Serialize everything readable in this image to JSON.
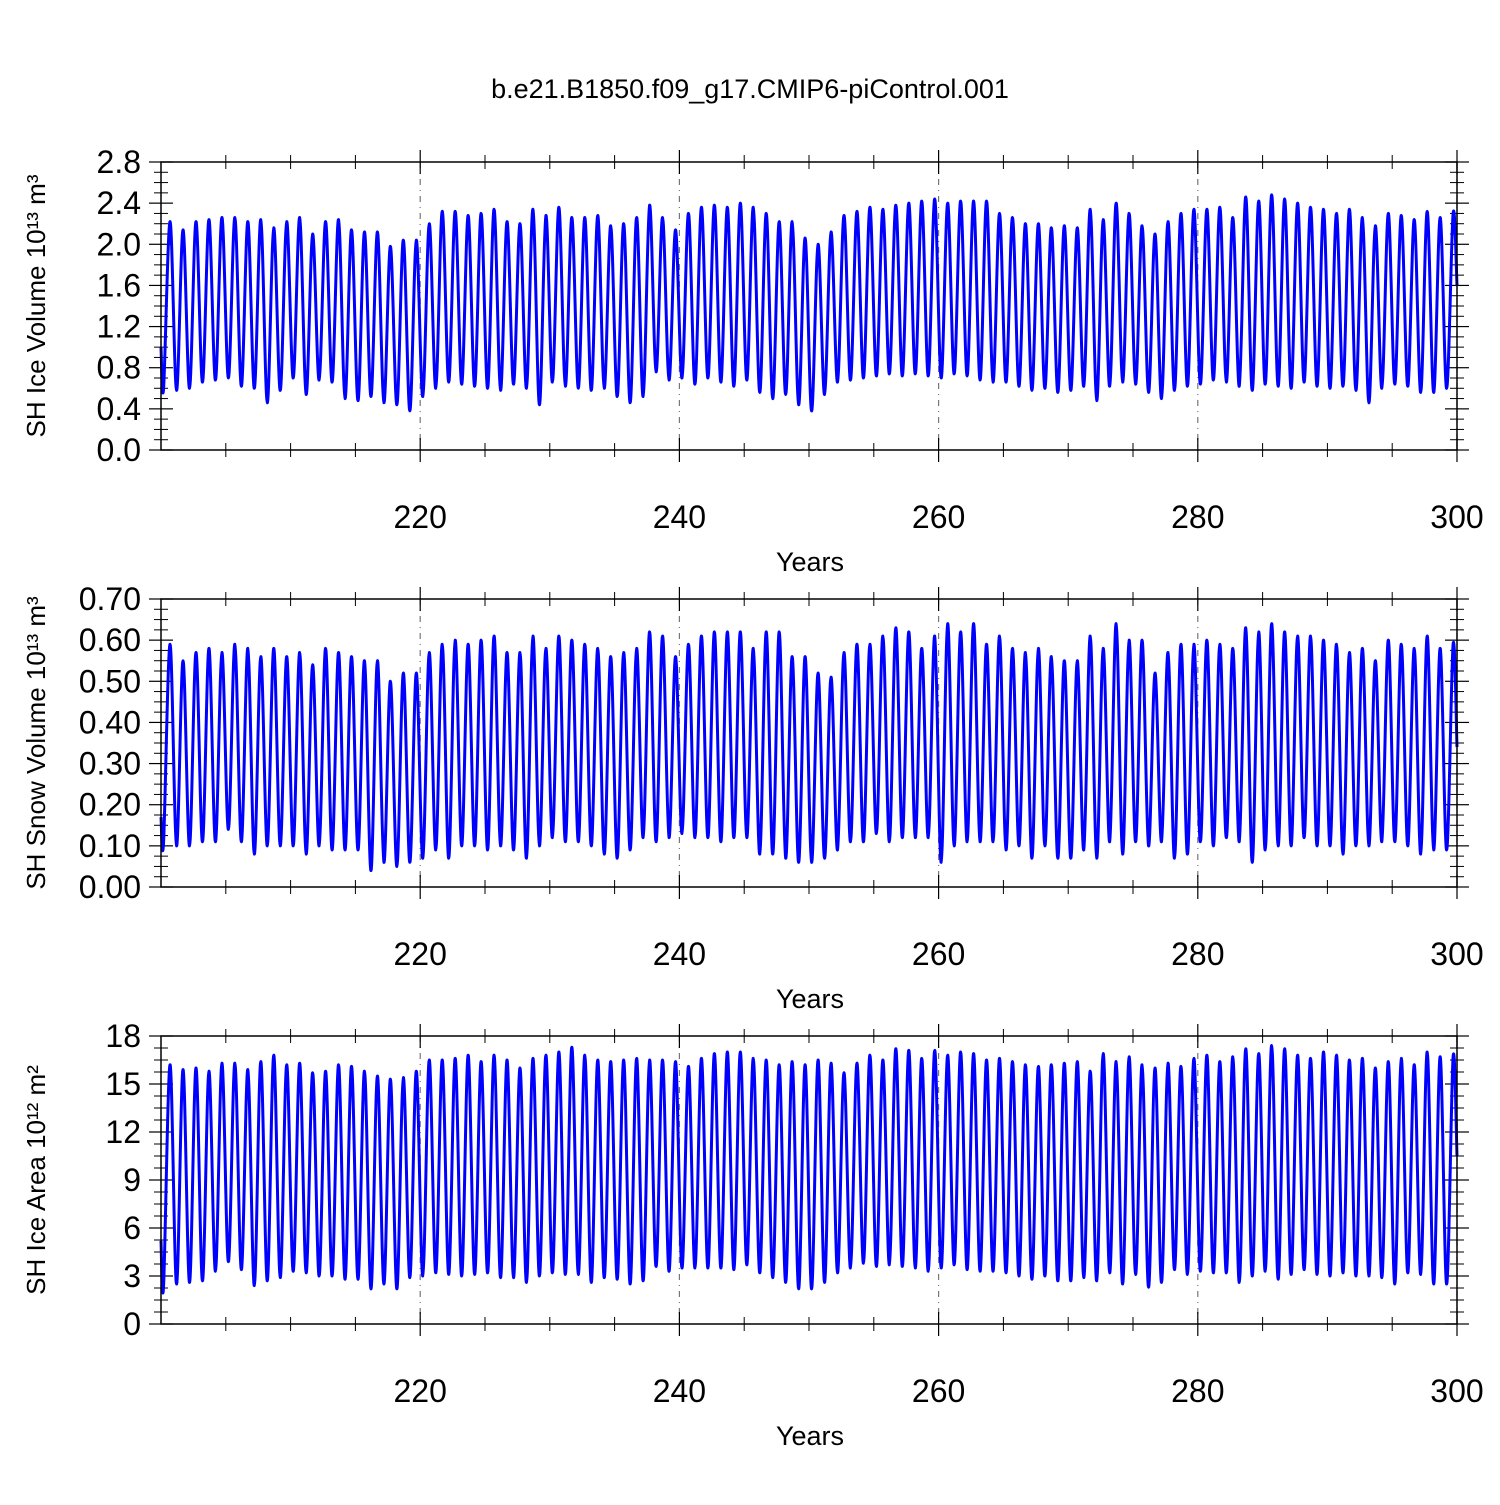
{
  "title": "b.e21.B1850.f09_g17.CMIP6-piControl.001",
  "chart_data": [
    {
      "type": "line",
      "ylabel": "SH Ice Volume 10¹³ m³",
      "xlabel": "Years",
      "color": "#0000ff",
      "xlim": [
        200,
        300
      ],
      "xticks": [
        220,
        240,
        260,
        280,
        300
      ],
      "xgrid": true,
      "ylim": [
        0,
        2.8
      ],
      "yticks": [
        {
          "value": 0,
          "label": "0.0"
        },
        0.4,
        0.8,
        1.2,
        1.6,
        {
          "value": 2,
          "label": "2.0"
        },
        2.4,
        2.8
      ],
      "x": [
        200,
        200.2,
        200.7,
        201.2,
        201.7,
        202.2,
        202.7,
        203.2,
        203.7,
        204.2,
        204.7,
        205.2,
        205.7,
        206.2,
        206.7,
        207.2,
        207.7,
        208.2,
        208.7,
        209.2,
        209.7,
        210.2,
        210.7,
        211.2,
        211.7,
        212.2,
        212.7,
        213.2,
        213.7,
        214.2,
        214.7,
        215.2,
        215.7,
        216.2,
        216.7,
        217.2,
        217.7,
        218.2,
        218.7,
        219.2,
        219.7,
        220.2,
        220.7,
        221.2,
        221.7,
        222.2,
        222.7,
        223.2,
        223.7,
        224.2,
        224.7,
        225.2,
        225.7,
        226.2,
        226.7,
        227.2,
        227.7,
        228.2,
        228.7,
        229.2,
        229.7,
        230.2,
        230.7,
        231.2,
        231.7,
        232.2,
        232.7,
        233.2,
        233.7,
        234.2,
        234.7,
        235.2,
        235.7,
        236.2,
        236.7,
        237.2,
        237.7,
        238.2,
        238.7,
        239.2,
        239.7,
        240.2,
        240.7,
        241.2,
        241.7,
        242.2,
        242.7,
        243.2,
        243.7,
        244.2,
        244.7,
        245.2,
        245.7,
        246.2,
        246.7,
        247.2,
        247.7,
        248.2,
        248.7,
        249.2,
        249.7,
        250.2,
        250.7,
        251.2,
        251.7,
        252.2,
        252.7,
        253.2,
        253.7,
        254.2,
        254.7,
        255.2,
        255.7,
        256.2,
        256.7,
        257.2,
        257.7,
        258.2,
        258.7,
        259.2,
        259.7,
        260.2,
        260.7,
        261.2,
        261.7,
        262.2,
        262.7,
        263.2,
        263.7,
        264.2,
        264.7,
        265.2,
        265.7,
        266.2,
        266.7,
        267.2,
        267.7,
        268.2,
        268.7,
        269.2,
        269.7,
        270.2,
        270.7,
        271.2,
        271.7,
        272.2,
        272.7,
        273.2,
        273.7,
        274.2,
        274.7,
        275.2,
        275.7,
        276.2,
        276.7,
        277.2,
        277.7,
        278.2,
        278.7,
        279.2,
        279.7,
        280.2,
        280.7,
        281.2,
        281.7,
        282.2,
        282.7,
        283.2,
        283.7,
        284.2,
        284.7,
        285.2,
        285.7,
        286.2,
        286.7,
        287.2,
        287.7,
        288.2,
        288.7,
        289.2,
        289.7,
        290.2,
        290.7,
        291.2,
        291.7,
        292.2,
        292.7,
        293.2,
        293.7,
        294.2,
        294.7,
        295.2,
        295.7,
        296.2,
        296.7,
        297.2,
        297.7,
        298.2,
        298.7,
        299.2,
        299.7,
        300
      ],
      "values": [
        1.0,
        0.6,
        2.22,
        0.58,
        2.14,
        0.6,
        2.22,
        0.66,
        2.24,
        0.68,
        2.26,
        0.7,
        2.26,
        0.62,
        2.22,
        0.6,
        2.24,
        0.46,
        2.16,
        0.58,
        2.22,
        0.7,
        2.26,
        0.54,
        2.1,
        0.68,
        2.22,
        0.66,
        2.24,
        0.5,
        2.14,
        0.48,
        2.12,
        0.52,
        2.12,
        0.46,
        1.98,
        0.44,
        2.04,
        0.38,
        2.04,
        0.52,
        2.2,
        0.6,
        2.32,
        0.66,
        2.32,
        0.64,
        2.28,
        0.62,
        2.3,
        0.6,
        2.34,
        0.58,
        2.22,
        0.64,
        2.2,
        0.6,
        2.34,
        0.44,
        2.28,
        0.66,
        2.36,
        0.62,
        2.26,
        0.6,
        2.26,
        0.58,
        2.28,
        0.6,
        2.18,
        0.52,
        2.2,
        0.46,
        2.26,
        0.52,
        2.38,
        0.76,
        2.26,
        0.68,
        2.14,
        0.7,
        2.3,
        0.64,
        2.36,
        0.7,
        2.38,
        0.66,
        2.36,
        0.62,
        2.4,
        0.68,
        2.36,
        0.56,
        2.3,
        0.5,
        2.22,
        0.54,
        2.22,
        0.44,
        2.06,
        0.38,
        2.0,
        0.54,
        2.12,
        0.66,
        2.28,
        0.68,
        2.32,
        0.7,
        2.36,
        0.72,
        2.34,
        0.74,
        2.38,
        0.72,
        2.4,
        0.74,
        2.42,
        0.72,
        2.44,
        0.7,
        2.4,
        0.74,
        2.42,
        0.72,
        2.42,
        0.68,
        2.42,
        0.66,
        2.3,
        0.66,
        2.26,
        0.62,
        2.2,
        0.58,
        2.2,
        0.6,
        2.16,
        0.56,
        2.18,
        0.58,
        2.16,
        0.62,
        2.34,
        0.48,
        2.24,
        0.62,
        2.4,
        0.66,
        2.3,
        0.64,
        2.18,
        0.56,
        2.1,
        0.5,
        2.22,
        0.58,
        2.3,
        0.62,
        2.34,
        0.64,
        2.34,
        0.68,
        2.36,
        0.66,
        2.26,
        0.62,
        2.46,
        0.58,
        2.42,
        0.64,
        2.48,
        0.62,
        2.44,
        0.6,
        2.4,
        0.66,
        2.36,
        0.62,
        2.34,
        0.6,
        2.3,
        0.62,
        2.34,
        0.58,
        2.26,
        0.46,
        2.18,
        0.6,
        2.3,
        0.64,
        2.28,
        0.62,
        2.24,
        0.56,
        2.32,
        0.56,
        2.26,
        0.6,
        2.3,
        1.6
      ]
    },
    {
      "type": "line",
      "ylabel": "SH Snow Volume 10¹³ m³",
      "xlabel": "Years",
      "color": "#0000ff",
      "xlim": [
        200,
        300
      ],
      "xticks": [
        220,
        240,
        260,
        280,
        300
      ],
      "xgrid": true,
      "ylim": [
        0,
        0.7
      ],
      "yticks": [
        {
          "value": 0,
          "label": "0.00"
        },
        {
          "value": 0.1,
          "label": "0.10"
        },
        {
          "value": 0.2,
          "label": "0.20"
        },
        {
          "value": 0.3,
          "label": "0.30"
        },
        {
          "value": 0.4,
          "label": "0.40"
        },
        {
          "value": 0.5,
          "label": "0.50"
        },
        {
          "value": 0.6,
          "label": "0.60"
        },
        {
          "value": 0.7,
          "label": "0.70"
        }
      ],
      "x": [
        200,
        200.2,
        200.7,
        201.2,
        201.7,
        202.2,
        202.7,
        203.2,
        203.7,
        204.2,
        204.7,
        205.2,
        205.7,
        206.2,
        206.7,
        207.2,
        207.7,
        208.2,
        208.7,
        209.2,
        209.7,
        210.2,
        210.7,
        211.2,
        211.7,
        212.2,
        212.7,
        213.2,
        213.7,
        214.2,
        214.7,
        215.2,
        215.7,
        216.2,
        216.7,
        217.2,
        217.7,
        218.2,
        218.7,
        219.2,
        219.7,
        220.2,
        220.7,
        221.2,
        221.7,
        222.2,
        222.7,
        223.2,
        223.7,
        224.2,
        224.7,
        225.2,
        225.7,
        226.2,
        226.7,
        227.2,
        227.7,
        228.2,
        228.7,
        229.2,
        229.7,
        230.2,
        230.7,
        231.2,
        231.7,
        232.2,
        232.7,
        233.2,
        233.7,
        234.2,
        234.7,
        235.2,
        235.7,
        236.2,
        236.7,
        237.2,
        237.7,
        238.2,
        238.7,
        239.2,
        239.7,
        240.2,
        240.7,
        241.2,
        241.7,
        242.2,
        242.7,
        243.2,
        243.7,
        244.2,
        244.7,
        245.2,
        245.7,
        246.2,
        246.7,
        247.2,
        247.7,
        248.2,
        248.7,
        249.2,
        249.7,
        250.2,
        250.7,
        251.2,
        251.7,
        252.2,
        252.7,
        253.2,
        253.7,
        254.2,
        254.7,
        255.2,
        255.7,
        256.2,
        256.7,
        257.2,
        257.7,
        258.2,
        258.7,
        259.2,
        259.7,
        260.2,
        260.7,
        261.2,
        261.7,
        262.2,
        262.7,
        263.2,
        263.7,
        264.2,
        264.7,
        265.2,
        265.7,
        266.2,
        266.7,
        267.2,
        267.7,
        268.2,
        268.7,
        269.2,
        269.7,
        270.2,
        270.7,
        271.2,
        271.7,
        272.2,
        272.7,
        273.2,
        273.7,
        274.2,
        274.7,
        275.2,
        275.7,
        276.2,
        276.7,
        277.2,
        277.7,
        278.2,
        278.7,
        279.2,
        279.7,
        280.2,
        280.7,
        281.2,
        281.7,
        282.2,
        282.7,
        283.2,
        283.7,
        284.2,
        284.7,
        285.2,
        285.7,
        286.2,
        286.7,
        287.2,
        287.7,
        288.2,
        288.7,
        289.2,
        289.7,
        290.2,
        290.7,
        291.2,
        291.7,
        292.2,
        292.7,
        293.2,
        293.7,
        294.2,
        294.7,
        295.2,
        295.7,
        296.2,
        296.7,
        297.2,
        297.7,
        298.2,
        298.7,
        299.2,
        299.7,
        300
      ],
      "values": [
        0.17,
        0.11,
        0.59,
        0.1,
        0.55,
        0.1,
        0.57,
        0.11,
        0.58,
        0.11,
        0.57,
        0.14,
        0.59,
        0.11,
        0.58,
        0.08,
        0.56,
        0.1,
        0.58,
        0.1,
        0.56,
        0.1,
        0.57,
        0.08,
        0.54,
        0.1,
        0.58,
        0.09,
        0.57,
        0.09,
        0.56,
        0.09,
        0.55,
        0.04,
        0.55,
        0.06,
        0.5,
        0.05,
        0.52,
        0.06,
        0.52,
        0.07,
        0.57,
        0.09,
        0.59,
        0.07,
        0.6,
        0.1,
        0.59,
        0.1,
        0.6,
        0.09,
        0.61,
        0.1,
        0.57,
        0.09,
        0.57,
        0.07,
        0.61,
        0.1,
        0.58,
        0.12,
        0.61,
        0.11,
        0.6,
        0.11,
        0.59,
        0.1,
        0.58,
        0.08,
        0.56,
        0.07,
        0.57,
        0.09,
        0.58,
        0.12,
        0.62,
        0.11,
        0.61,
        0.12,
        0.56,
        0.13,
        0.59,
        0.12,
        0.61,
        0.12,
        0.62,
        0.11,
        0.62,
        0.12,
        0.62,
        0.12,
        0.58,
        0.08,
        0.62,
        0.08,
        0.62,
        0.07,
        0.56,
        0.06,
        0.56,
        0.06,
        0.52,
        0.07,
        0.51,
        0.09,
        0.57,
        0.11,
        0.59,
        0.11,
        0.59,
        0.13,
        0.61,
        0.11,
        0.63,
        0.12,
        0.62,
        0.12,
        0.58,
        0.12,
        0.61,
        0.06,
        0.64,
        0.1,
        0.62,
        0.11,
        0.64,
        0.11,
        0.59,
        0.11,
        0.61,
        0.09,
        0.58,
        0.1,
        0.57,
        0.07,
        0.58,
        0.1,
        0.56,
        0.07,
        0.55,
        0.07,
        0.55,
        0.09,
        0.61,
        0.07,
        0.58,
        0.11,
        0.64,
        0.08,
        0.6,
        0.11,
        0.6,
        0.1,
        0.52,
        0.11,
        0.57,
        0.07,
        0.59,
        0.08,
        0.59,
        0.11,
        0.6,
        0.1,
        0.59,
        0.12,
        0.58,
        0.11,
        0.63,
        0.06,
        0.62,
        0.09,
        0.64,
        0.1,
        0.62,
        0.1,
        0.61,
        0.12,
        0.61,
        0.1,
        0.6,
        0.1,
        0.59,
        0.08,
        0.57,
        0.1,
        0.58,
        0.1,
        0.55,
        0.11,
        0.6,
        0.11,
        0.59,
        0.1,
        0.58,
        0.08,
        0.61,
        0.09,
        0.58,
        0.09,
        0.59,
        0.34
      ]
    },
    {
      "type": "line",
      "ylabel": "SH Ice Area 10¹² m²",
      "xlabel": "Years",
      "color": "#0000ff",
      "xlim": [
        200,
        300
      ],
      "xticks": [
        220,
        240,
        260,
        280,
        300
      ],
      "xgrid": true,
      "ylim": [
        0,
        18
      ],
      "yticks": [
        0,
        3,
        6,
        9,
        12,
        15,
        18
      ],
      "x": [
        200,
        200.2,
        200.7,
        201.2,
        201.7,
        202.2,
        202.7,
        203.2,
        203.7,
        204.2,
        204.7,
        205.2,
        205.7,
        206.2,
        206.7,
        207.2,
        207.7,
        208.2,
        208.7,
        209.2,
        209.7,
        210.2,
        210.7,
        211.2,
        211.7,
        212.2,
        212.7,
        213.2,
        213.7,
        214.2,
        214.7,
        215.2,
        215.7,
        216.2,
        216.7,
        217.2,
        217.7,
        218.2,
        218.7,
        219.2,
        219.7,
        220.2,
        220.7,
        221.2,
        221.7,
        222.2,
        222.7,
        223.2,
        223.7,
        224.2,
        224.7,
        225.2,
        225.7,
        226.2,
        226.7,
        227.2,
        227.7,
        228.2,
        228.7,
        229.2,
        229.7,
        230.2,
        230.7,
        231.2,
        231.7,
        232.2,
        232.7,
        233.2,
        233.7,
        234.2,
        234.7,
        235.2,
        235.7,
        236.2,
        236.7,
        237.2,
        237.7,
        238.2,
        238.7,
        239.2,
        239.7,
        240.2,
        240.7,
        241.2,
        241.7,
        242.2,
        242.7,
        243.2,
        243.7,
        244.2,
        244.7,
        245.2,
        245.7,
        246.2,
        246.7,
        247.2,
        247.7,
        248.2,
        248.7,
        249.2,
        249.7,
        250.2,
        250.7,
        251.2,
        251.7,
        252.2,
        252.7,
        253.2,
        253.7,
        254.2,
        254.7,
        255.2,
        255.7,
        256.2,
        256.7,
        257.2,
        257.7,
        258.2,
        258.7,
        259.2,
        259.7,
        260.2,
        260.7,
        261.2,
        261.7,
        262.2,
        262.7,
        263.2,
        263.7,
        264.2,
        264.7,
        265.2,
        265.7,
        266.2,
        266.7,
        267.2,
        267.7,
        268.2,
        268.7,
        269.2,
        269.7,
        270.2,
        270.7,
        271.2,
        271.7,
        272.2,
        272.7,
        273.2,
        273.7,
        274.2,
        274.7,
        275.2,
        275.7,
        276.2,
        276.7,
        277.2,
        277.7,
        278.2,
        278.7,
        279.2,
        279.7,
        280.2,
        280.7,
        281.2,
        281.7,
        282.2,
        282.7,
        283.2,
        283.7,
        284.2,
        284.7,
        285.2,
        285.7,
        286.2,
        286.7,
        287.2,
        287.7,
        288.2,
        288.7,
        289.2,
        289.7,
        290.2,
        290.7,
        291.2,
        291.7,
        292.2,
        292.7,
        293.2,
        293.7,
        294.2,
        294.7,
        295.2,
        295.7,
        296.2,
        296.7,
        297.2,
        297.7,
        298.2,
        298.7,
        299.2,
        299.7,
        300
      ],
      "values": [
        5.2,
        2.4,
        16.2,
        2.5,
        15.9,
        2.6,
        16.0,
        2.7,
        15.8,
        3.3,
        16.3,
        3.9,
        16.3,
        3.4,
        15.9,
        2.4,
        16.4,
        2.7,
        16.8,
        2.9,
        16.2,
        3.3,
        16.3,
        3.2,
        15.7,
        3.0,
        15.8,
        3.0,
        16.2,
        2.8,
        16.1,
        2.8,
        15.8,
        2.2,
        15.5,
        2.5,
        15.3,
        2.2,
        15.4,
        2.9,
        15.8,
        3.0,
        16.5,
        3.2,
        16.5,
        3.1,
        16.6,
        3.0,
        16.8,
        3.1,
        16.4,
        3.2,
        16.8,
        2.9,
        16.5,
        2.9,
        16.0,
        2.6,
        16.6,
        3.0,
        16.8,
        3.2,
        17.0,
        3.1,
        17.3,
        3.1,
        16.8,
        2.6,
        16.5,
        2.9,
        16.4,
        2.8,
        16.5,
        2.5,
        16.6,
        2.7,
        16.5,
        3.6,
        16.5,
        3.3,
        16.4,
        3.5,
        16.1,
        3.5,
        16.6,
        3.5,
        16.9,
        3.5,
        17.0,
        3.4,
        17.0,
        3.7,
        16.6,
        3.2,
        16.5,
        2.9,
        16.2,
        2.6,
        16.4,
        2.2,
        16.2,
        2.2,
        16.5,
        2.6,
        16.3,
        3.2,
        15.7,
        3.5,
        16.3,
        3.8,
        16.8,
        3.6,
        16.5,
        3.7,
        17.2,
        3.6,
        17.1,
        3.5,
        16.6,
        3.3,
        17.1,
        3.5,
        16.8,
        3.7,
        17.0,
        3.4,
        16.9,
        3.3,
        16.5,
        3.3,
        16.6,
        3.2,
        16.4,
        3.0,
        16.2,
        2.8,
        16.1,
        3.0,
        16.2,
        2.7,
        16.3,
        2.7,
        16.4,
        2.9,
        15.8,
        2.7,
        16.9,
        3.2,
        16.4,
        2.5,
        16.7,
        3.1,
        16.2,
        2.3,
        16.0,
        2.6,
        16.3,
        3.4,
        16.1,
        3.1,
        16.6,
        3.3,
        16.8,
        3.2,
        16.4,
        3.2,
        16.7,
        2.6,
        17.2,
        3.0,
        16.9,
        3.3,
        17.4,
        2.8,
        17.2,
        3.1,
        16.8,
        3.4,
        16.6,
        3.1,
        17.0,
        3.0,
        16.8,
        3.2,
        16.5,
        3.0,
        16.6,
        3.0,
        16.0,
        2.9,
        16.4,
        2.5,
        16.6,
        3.2,
        16.2,
        3.1,
        17.0,
        2.5,
        16.7,
        2.5,
        16.7,
        10.5
      ]
    }
  ]
}
